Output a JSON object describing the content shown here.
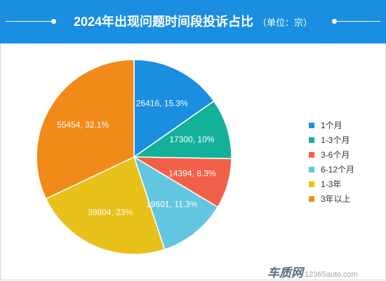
{
  "header": {
    "title": "2024年出现问题时间段投诉占比",
    "unit": "（单位：宗）",
    "background_color": "#1a8ee0"
  },
  "chart_data": {
    "type": "pie",
    "title": "2024年出现问题时间段投诉占比",
    "unit": "宗",
    "legend_position": "right",
    "slices": [
      {
        "label": "1个月",
        "value": 26416,
        "percent": "15.3%",
        "data_label": "26416, 15.3%",
        "color": "#1a8ee0"
      },
      {
        "label": "1-3个月",
        "value": 17300,
        "percent": "10%",
        "data_label": "17300, 10%",
        "color": "#13b19a"
      },
      {
        "label": "3-6个月",
        "value": 14394,
        "percent": "8.3%",
        "data_label": "14394, 8.3%",
        "color": "#f2604a"
      },
      {
        "label": "6-12个月",
        "value": 19601,
        "percent": "11.3%",
        "data_label": "19601, 11.3%",
        "color": "#62c6e0"
      },
      {
        "label": "1-3年",
        "value": 39804,
        "percent": "23%",
        "data_label": "39804, 23%",
        "color": "#e8c11a"
      },
      {
        "label": "3年以上",
        "value": 55454,
        "percent": "32.1%",
        "data_label": "55454, 32.1%",
        "color": "#f28a1a"
      }
    ]
  },
  "watermark": {
    "brand": "车质网",
    "url": "12365auto.com"
  }
}
